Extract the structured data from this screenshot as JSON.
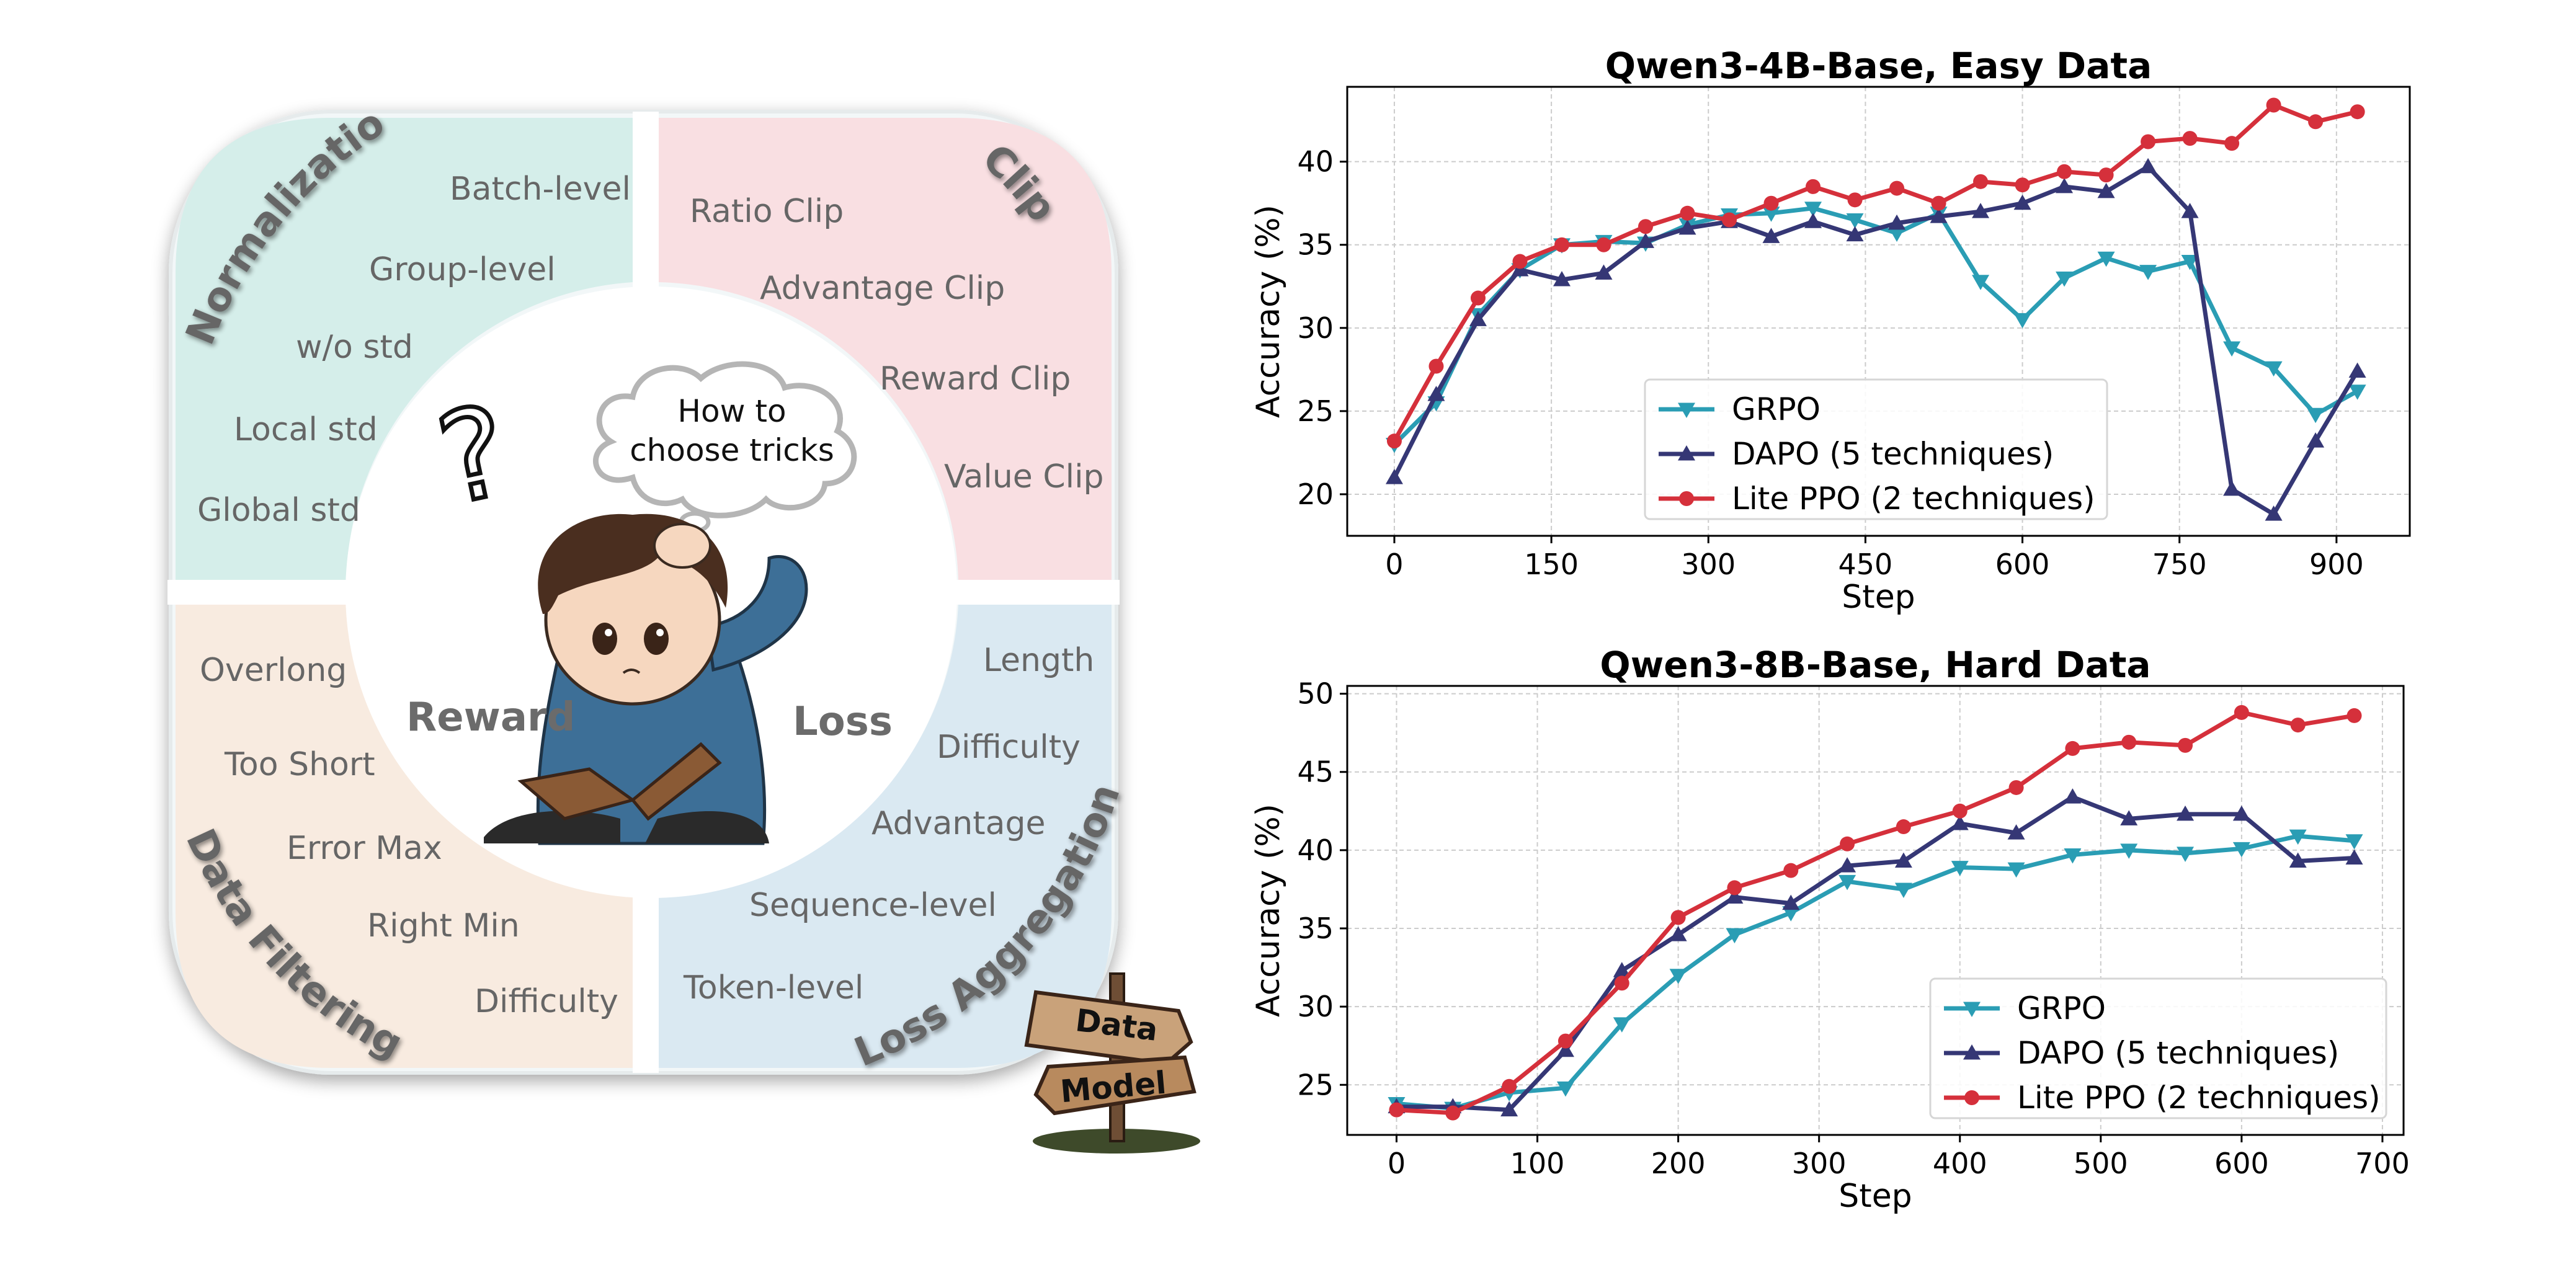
{
  "diagram": {
    "sections": {
      "normalization": {
        "title": "Normalization",
        "items": [
          "Batch-level",
          "Group-level",
          "w/o std",
          "Local std",
          "Global std"
        ]
      },
      "clip": {
        "title": "Clip",
        "items": [
          "Ratio Clip",
          "Advantage Clip",
          "Reward Clip",
          "Value Clip"
        ]
      },
      "data_filtering": {
        "title": "Data Filtering",
        "items": [
          "Overlong",
          "Too Short",
          "Error Max",
          "Right Min",
          "Difficulty"
        ]
      },
      "loss_aggregation": {
        "title": "Loss Aggregation",
        "items": [
          "Length",
          "Difficulty",
          "Advantage",
          "Sequence-level",
          "Token-level"
        ]
      }
    },
    "center": {
      "thought_line1": "How to",
      "thought_line2": "choose tricks",
      "reward_label": "Reward",
      "loss_label": "Loss",
      "question_mark": "?"
    },
    "signpost": {
      "top": "Data",
      "bottom": "Model"
    },
    "colors": {
      "normalization": "#d5eeea",
      "clip": "#f9dfe2",
      "data_filtering": "#f8ebe0",
      "loss_aggregation": "#dae9f2",
      "frame": "#f2f7f8"
    }
  },
  "chart_data": [
    {
      "type": "line",
      "title": "Qwen3-4B-Base, Easy Data",
      "xlabel": "Step",
      "ylabel": "Accuracy (%)",
      "xlim": [
        -45,
        970
      ],
      "ylim": [
        17.5,
        44.5
      ],
      "xticks": [
        0,
        150,
        300,
        450,
        600,
        750,
        900
      ],
      "yticks": [
        20,
        25,
        30,
        35,
        40
      ],
      "grid": true,
      "legend_position": "lower-center",
      "series": [
        {
          "name": "GRPO",
          "color": "#2a9db4",
          "marker": "triangle-down",
          "x": [
            0,
            40,
            80,
            120,
            160,
            200,
            240,
            280,
            320,
            360,
            400,
            440,
            480,
            520,
            560,
            600,
            640,
            680,
            720,
            760,
            800,
            840,
            880,
            920
          ],
          "y": [
            23.0,
            25.5,
            30.8,
            33.5,
            35.0,
            35.2,
            35.1,
            36.2,
            36.8,
            36.9,
            37.2,
            36.5,
            35.7,
            36.9,
            32.8,
            30.5,
            33.0,
            34.2,
            33.4,
            34.0,
            28.8,
            27.6,
            24.8,
            26.2
          ]
        },
        {
          "name": "DAPO (5 techniques)",
          "color": "#353775",
          "marker": "triangle-up",
          "x": [
            0,
            40,
            80,
            120,
            160,
            200,
            240,
            280,
            320,
            360,
            400,
            440,
            480,
            520,
            560,
            600,
            640,
            680,
            720,
            760,
            800,
            840,
            880,
            920
          ],
          "y": [
            21.0,
            26.0,
            30.5,
            33.5,
            32.9,
            33.3,
            35.2,
            36.0,
            36.4,
            35.5,
            36.4,
            35.6,
            36.3,
            36.7,
            37.0,
            37.5,
            38.5,
            38.2,
            39.7,
            37.0,
            20.3,
            18.8,
            23.2,
            27.4
          ]
        },
        {
          "name": "Lite PPO (2 techniques)",
          "color": "#d5303b",
          "marker": "circle",
          "x": [
            0,
            40,
            80,
            120,
            160,
            200,
            240,
            280,
            320,
            360,
            400,
            440,
            480,
            520,
            560,
            600,
            640,
            680,
            720,
            760,
            800,
            840,
            880,
            920
          ],
          "y": [
            23.2,
            27.7,
            31.8,
            34.0,
            35.0,
            35.0,
            36.1,
            36.9,
            36.5,
            37.5,
            38.5,
            37.7,
            38.4,
            37.5,
            38.8,
            38.6,
            39.4,
            39.2,
            41.2,
            41.4,
            41.1,
            43.4,
            42.4,
            43.0
          ]
        }
      ]
    },
    {
      "type": "line",
      "title": "Qwen3-8B-Base, Hard Data",
      "xlabel": "Step",
      "ylabel": "Accuracy (%)",
      "xlim": [
        -35,
        715
      ],
      "ylim": [
        21.8,
        50.5
      ],
      "xticks": [
        0,
        100,
        200,
        300,
        400,
        500,
        600,
        700
      ],
      "yticks": [
        25,
        30,
        35,
        40,
        45,
        50
      ],
      "grid": true,
      "legend_position": "lower-right",
      "series": [
        {
          "name": "GRPO",
          "color": "#2a9db4",
          "marker": "triangle-down",
          "x": [
            0,
            40,
            80,
            120,
            160,
            200,
            240,
            280,
            320,
            360,
            400,
            440,
            480,
            520,
            560,
            600,
            640,
            680
          ],
          "y": [
            23.8,
            23.5,
            24.5,
            24.8,
            28.9,
            32.0,
            34.6,
            36.0,
            38.0,
            37.5,
            38.9,
            38.8,
            39.7,
            40.0,
            39.8,
            40.1,
            40.9,
            40.6
          ]
        },
        {
          "name": "DAPO (5 techniques)",
          "color": "#353775",
          "marker": "triangle-up",
          "x": [
            0,
            40,
            80,
            120,
            160,
            200,
            240,
            280,
            320,
            360,
            400,
            440,
            480,
            520,
            560,
            600,
            640,
            680
          ],
          "y": [
            23.6,
            23.6,
            23.4,
            27.2,
            32.3,
            34.6,
            37.0,
            36.6,
            39.0,
            39.3,
            41.7,
            41.1,
            43.4,
            42.0,
            42.3,
            42.3,
            39.3,
            39.5
          ]
        },
        {
          "name": "Lite PPO (2 techniques)",
          "color": "#d5303b",
          "marker": "circle",
          "x": [
            0,
            40,
            80,
            120,
            160,
            200,
            240,
            280,
            320,
            360,
            400,
            440,
            480,
            520,
            560,
            600,
            640,
            680
          ],
          "y": [
            23.4,
            23.2,
            24.9,
            27.8,
            31.5,
            35.7,
            37.6,
            38.7,
            40.4,
            41.5,
            42.5,
            44.0,
            46.5,
            46.9,
            46.7,
            48.8,
            48.0,
            48.6
          ]
        }
      ]
    }
  ]
}
